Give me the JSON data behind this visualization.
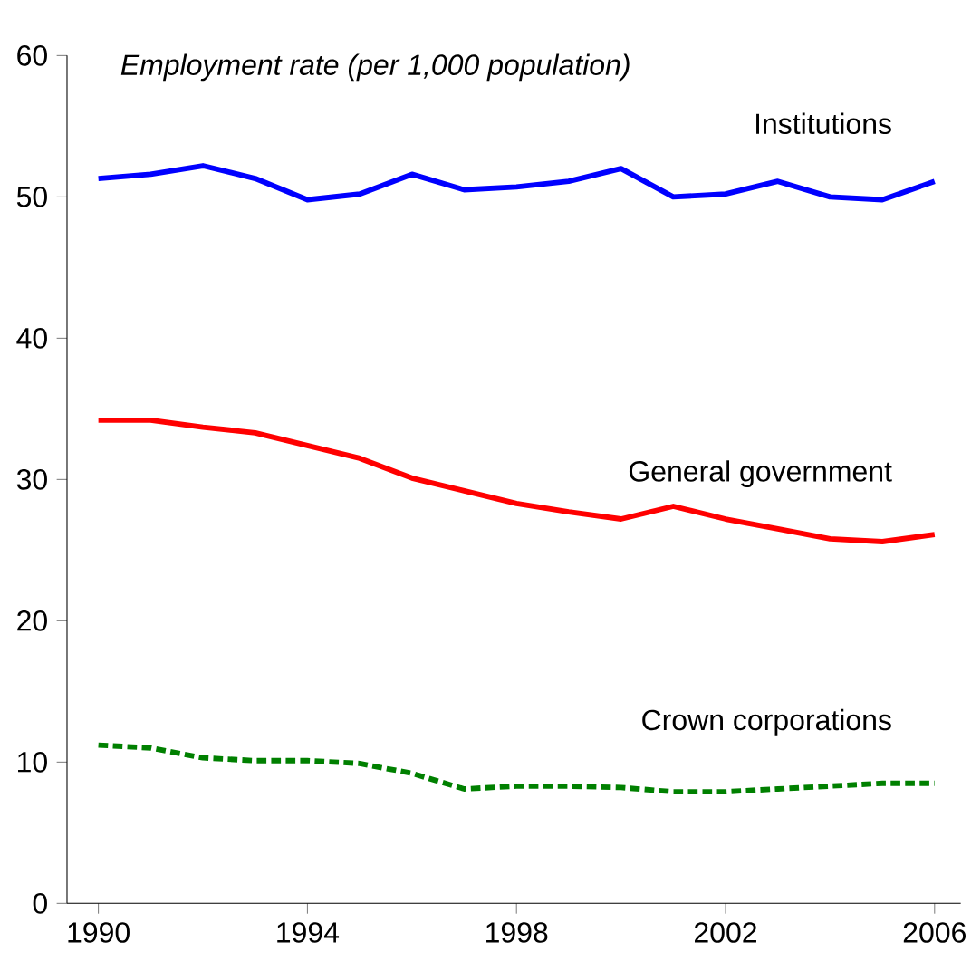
{
  "chart_data": {
    "type": "line",
    "title": "Employment rate (per 1,000 population)",
    "x": [
      1990,
      1991,
      1992,
      1993,
      1994,
      1995,
      1996,
      1997,
      1998,
      1999,
      2000,
      2001,
      2002,
      2003,
      2004,
      2005,
      2006
    ],
    "series": [
      {
        "name": "Institutions",
        "color": "#0000ff",
        "line_style": "solid",
        "values": [
          51.3,
          51.6,
          52.2,
          51.3,
          49.8,
          50.2,
          51.6,
          50.5,
          50.7,
          51.1,
          52.0,
          50.0,
          50.2,
          51.1,
          50.0,
          49.8,
          51.1
        ]
      },
      {
        "name": "General government",
        "color": "#ff0000",
        "line_style": "solid",
        "values": [
          34.2,
          34.2,
          33.7,
          33.3,
          32.4,
          31.5,
          30.1,
          29.2,
          28.3,
          27.7,
          27.2,
          28.1,
          27.2,
          26.5,
          25.8,
          25.6,
          26.1
        ]
      },
      {
        "name": "Crown corporations",
        "color": "#008000",
        "line_style": "dashed",
        "values": [
          11.2,
          11.0,
          10.3,
          10.1,
          10.1,
          9.9,
          9.2,
          8.1,
          8.3,
          8.3,
          8.2,
          7.9,
          7.9,
          8.1,
          8.3,
          8.5,
          8.5
        ]
      }
    ],
    "xlim": [
      1989.4,
      2006.5
    ],
    "xticks": [
      1990,
      1994,
      1998,
      2002,
      2006
    ],
    "ylim": [
      0,
      60
    ],
    "yticks": [
      0,
      10,
      20,
      30,
      40,
      50,
      60
    ],
    "grid": false,
    "marker": "none"
  }
}
